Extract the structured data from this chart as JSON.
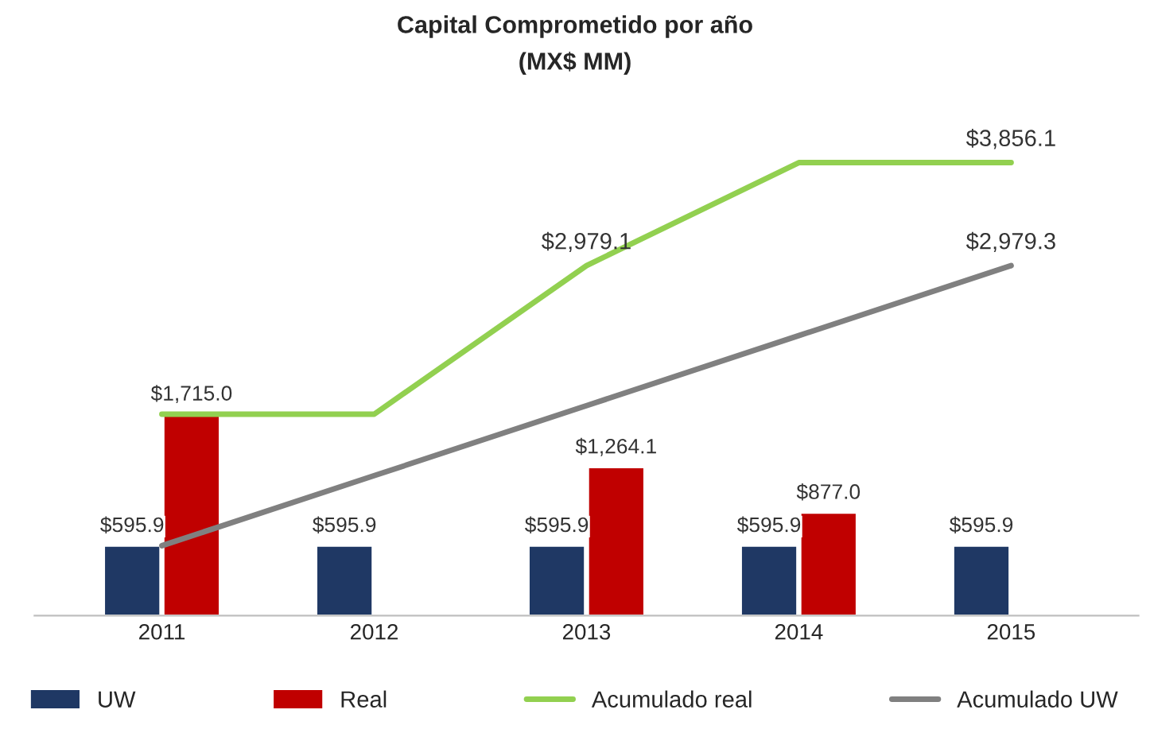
{
  "chart_data": {
    "type": "bar",
    "title": "Capital Comprometido por año",
    "subtitle": "(MX$ MM)",
    "categories": [
      "2011",
      "2012",
      "2013",
      "2014",
      "2015"
    ],
    "series": [
      {
        "name": "UW",
        "color": "#1f3864",
        "values": [
          595.9,
          595.9,
          595.9,
          595.9,
          595.9
        ],
        "value_labels": [
          "$595.9",
          "$595.9",
          "$595.9",
          "$595.9",
          "$595.9"
        ]
      },
      {
        "name": "Real",
        "color": "#c00000",
        "values": [
          1715.0,
          null,
          1264.1,
          877.0,
          null
        ],
        "value_labels": [
          "$1,715.0",
          null,
          "$1,264.1",
          "$877.0",
          null
        ]
      },
      {
        "name": "Acumulado real",
        "type": "line",
        "color": "#92d050",
        "values": [
          1715.0,
          1715.0,
          2979.1,
          3856.1,
          3856.1
        ],
        "value_labels": [
          null,
          null,
          "$2,979.1",
          null,
          "$3,856.1"
        ]
      },
      {
        "name": "Acumulado UW",
        "type": "line",
        "color": "#808080",
        "values": [
          595.9,
          1191.8,
          1787.7,
          2383.6,
          2979.3
        ],
        "value_labels": [
          null,
          null,
          null,
          null,
          "$2,979.3"
        ]
      }
    ],
    "tick_labels": "x",
    "legend": "bottom",
    "grid": false
  }
}
